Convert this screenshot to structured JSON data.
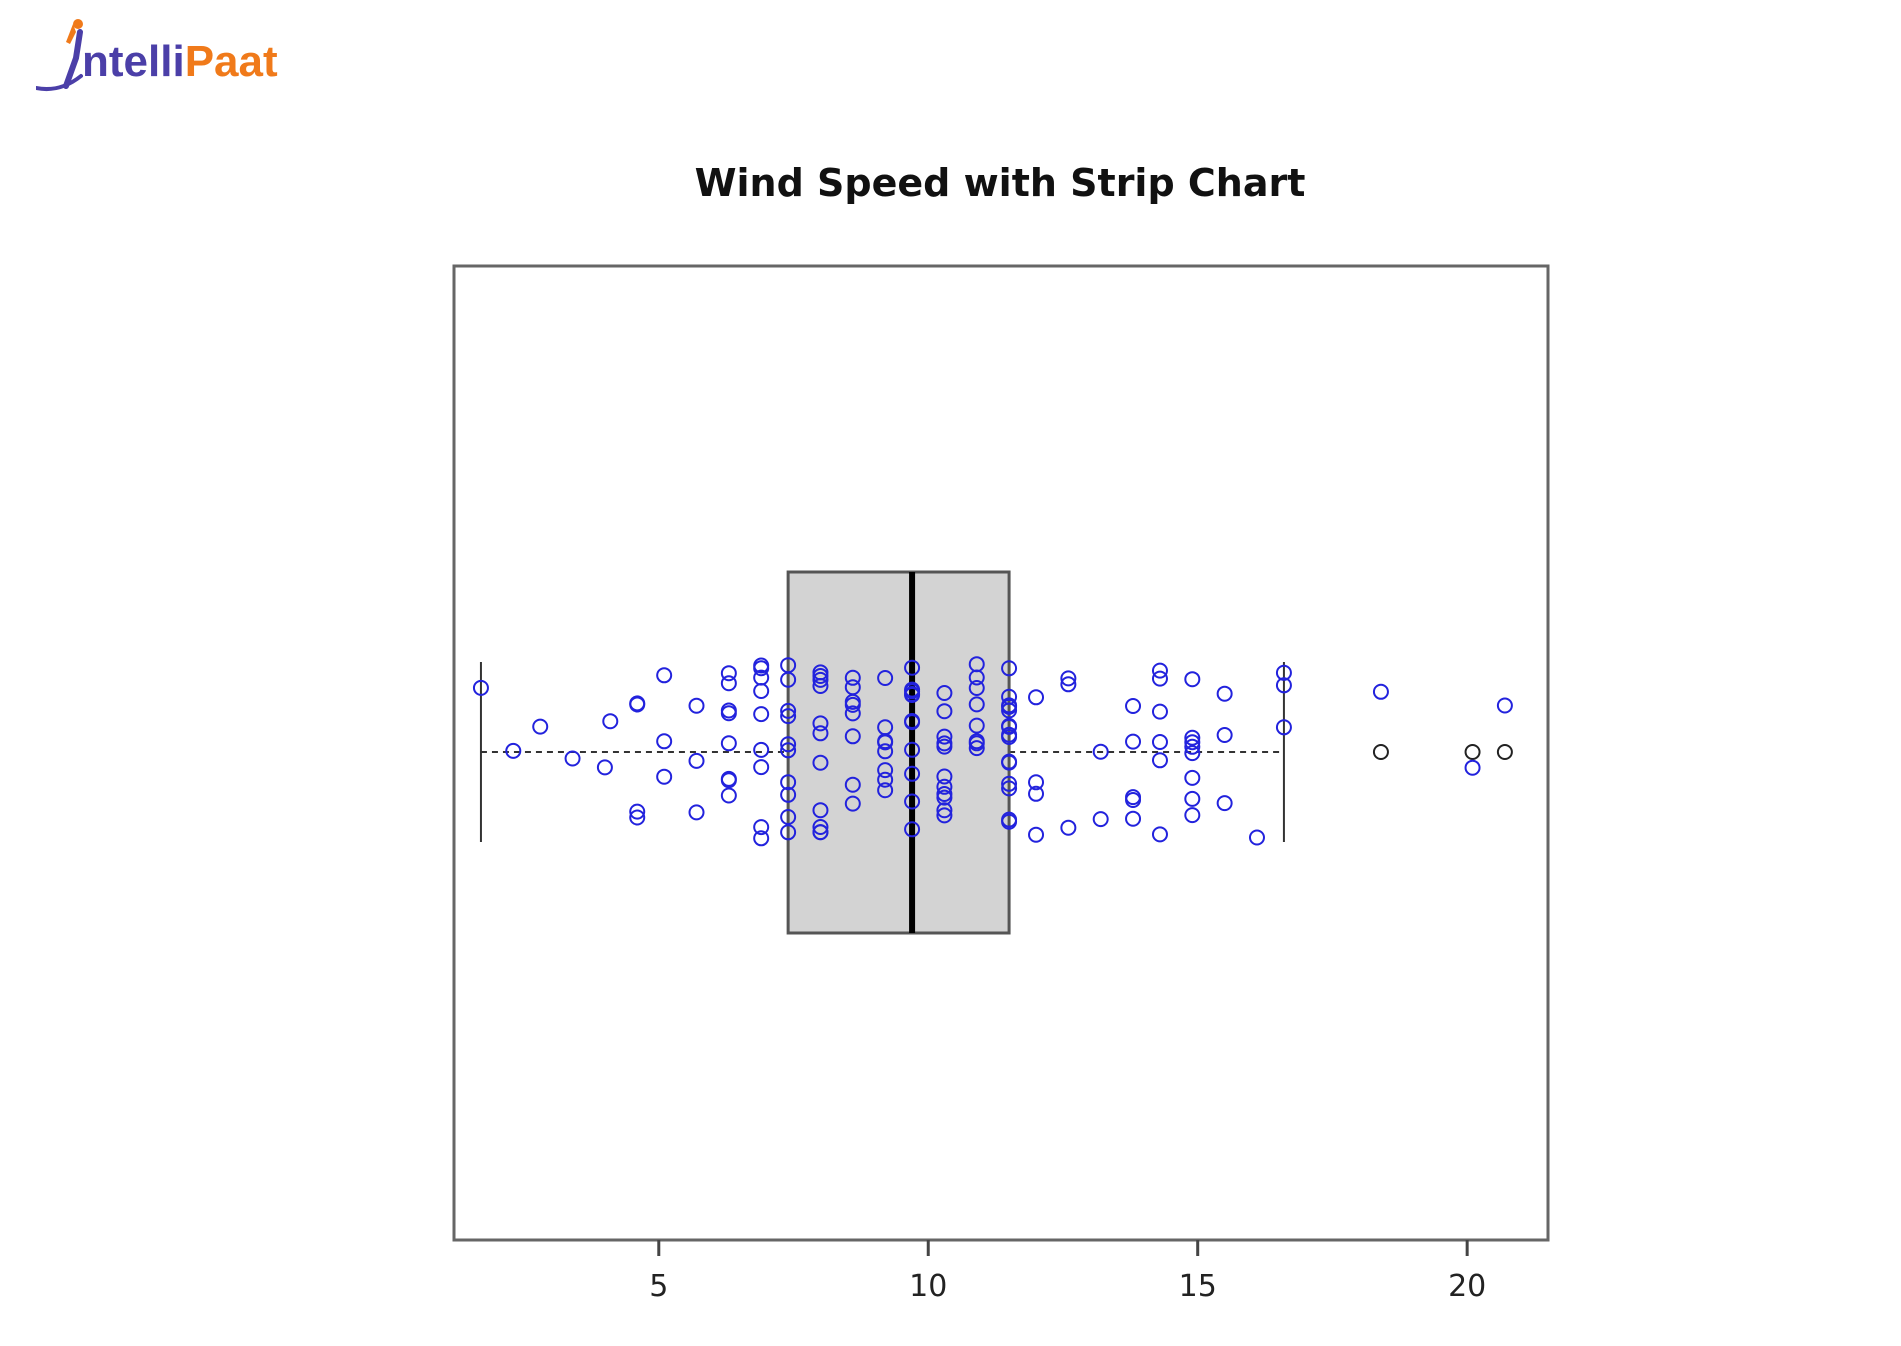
{
  "brand": {
    "logo_text_first": "ntelli",
    "logo_text_second": "Paat",
    "colors": {
      "primary": "#4b3fa8",
      "accent": "#f07a1a"
    }
  },
  "chart_data": {
    "type": "boxplot",
    "orientation": "horizontal",
    "title": "Wind Speed with Strip Chart",
    "xlabel": "",
    "ylabel": "",
    "xlim": [
      1.2,
      21.5
    ],
    "ticks": [
      5,
      10,
      15,
      20
    ],
    "tick_labels": [
      "5",
      "10",
      "15",
      "20"
    ],
    "grid": false,
    "box": {
      "whisker_low": 1.7,
      "q1": 7.4,
      "median": 9.7,
      "q3": 11.5,
      "whisker_high": 16.6,
      "fill": "#d3d3d3",
      "outliers": [
        18.4,
        20.1,
        20.7
      ]
    },
    "strip": {
      "color": "#2222dd",
      "outlier_color": "#222222",
      "values": [
        7.4,
        8.0,
        12.6,
        11.5,
        14.3,
        14.9,
        8.6,
        13.8,
        20.1,
        8.6,
        6.9,
        9.7,
        9.2,
        10.9,
        13.2,
        11.5,
        12.0,
        18.4,
        11.5,
        9.7,
        9.7,
        16.6,
        9.7,
        12.0,
        16.6,
        14.9,
        8.0,
        12.0,
        14.9,
        5.7,
        7.4,
        8.6,
        9.7,
        16.1,
        9.2,
        8.6,
        14.3,
        9.7,
        6.9,
        13.8,
        11.5,
        10.9,
        9.2,
        8.0,
        13.8,
        11.5,
        14.9,
        20.7,
        9.2,
        11.5,
        10.3,
        6.3,
        1.7,
        4.6,
        6.3,
        8.0,
        8.0,
        10.3,
        11.5,
        14.9,
        8.0,
        4.1,
        9.2,
        9.2,
        10.9,
        4.6,
        10.9,
        5.1,
        6.3,
        5.7,
        7.4,
        8.6,
        14.3,
        14.9,
        14.9,
        14.3,
        6.9,
        10.3,
        6.3,
        5.1,
        11.5,
        6.9,
        9.7,
        11.5,
        8.6,
        8.0,
        8.6,
        12.0,
        7.4,
        7.4,
        7.4,
        9.2,
        6.9,
        13.8,
        7.4,
        6.9,
        7.4,
        4.6,
        4.0,
        10.3,
        8.0,
        8.6,
        11.5,
        11.5,
        11.5,
        9.7,
        11.5,
        10.3,
        6.3,
        7.4,
        10.9,
        10.3,
        15.5,
        14.3,
        12.6,
        9.7,
        3.4,
        8.0,
        5.7,
        9.7,
        2.3,
        6.3,
        6.3,
        6.9,
        5.1,
        2.8,
        4.6,
        7.4,
        15.5,
        10.9,
        10.3,
        10.9,
        9.7,
        14.9,
        15.5,
        6.3,
        10.9,
        11.5,
        6.9,
        13.8,
        10.3,
        10.3,
        8.0,
        12.6,
        9.2,
        10.3,
        10.3,
        16.6,
        6.9,
        13.2,
        14.3,
        8.0,
        11.5
      ]
    }
  }
}
